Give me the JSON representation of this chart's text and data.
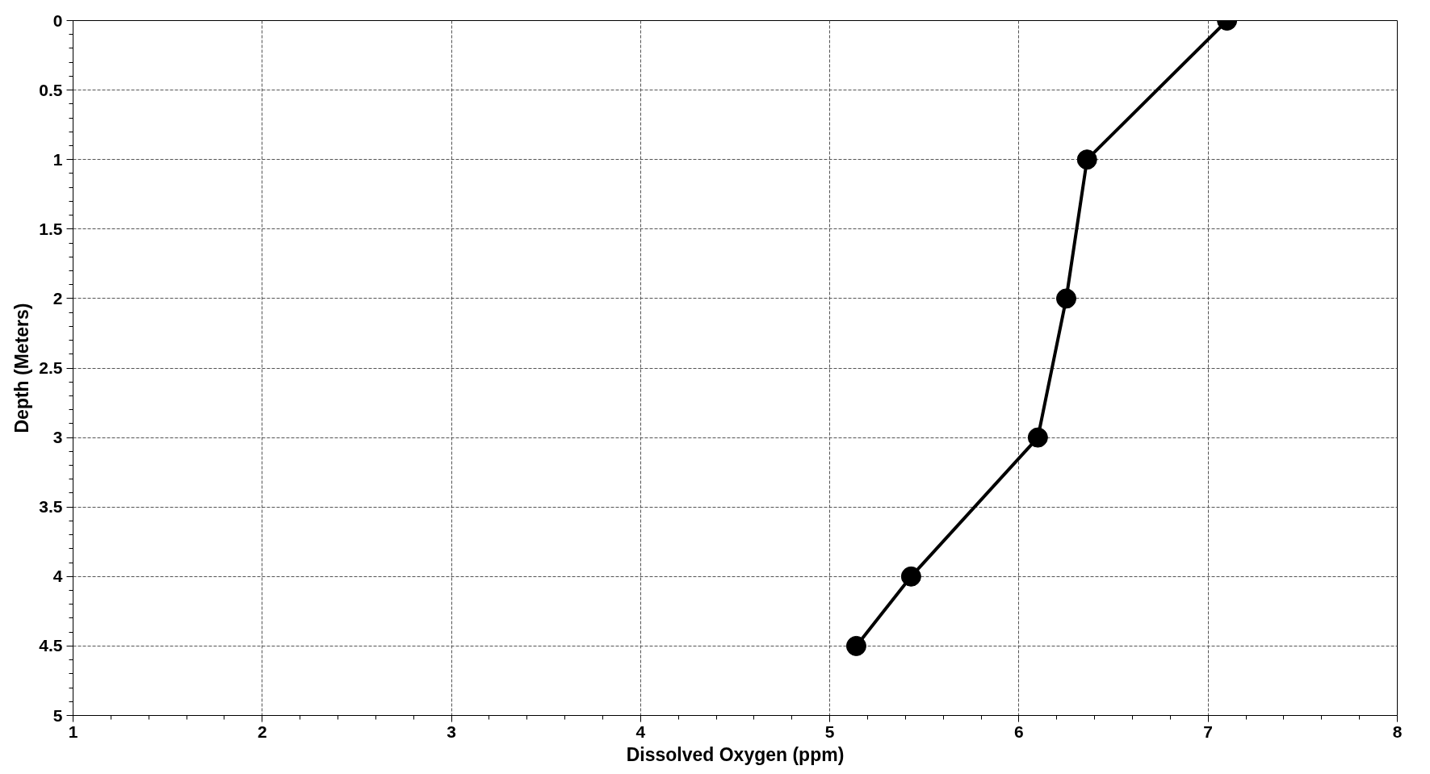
{
  "chart_data": {
    "type": "line",
    "xlabel": "Dissolved Oxygen (ppm)",
    "ylabel": "Depth (Meters)",
    "x": [
      7.1,
      6.36,
      6.25,
      6.1,
      5.43,
      5.14
    ],
    "series": [
      {
        "color": "#000000",
        "values": [
          0,
          1,
          2,
          3,
          4,
          4.5
        ]
      }
    ],
    "xlim": [
      1,
      8
    ],
    "xticks": [
      1,
      2,
      3,
      4,
      5,
      6,
      7,
      8
    ],
    "ylim": [
      5,
      0
    ],
    "yticks": [
      0,
      0.5,
      1,
      1.5,
      2,
      2.5,
      3,
      3.5,
      4,
      4.5,
      5
    ],
    "grid": true,
    "marker": "circle",
    "line_style": "solid"
  }
}
